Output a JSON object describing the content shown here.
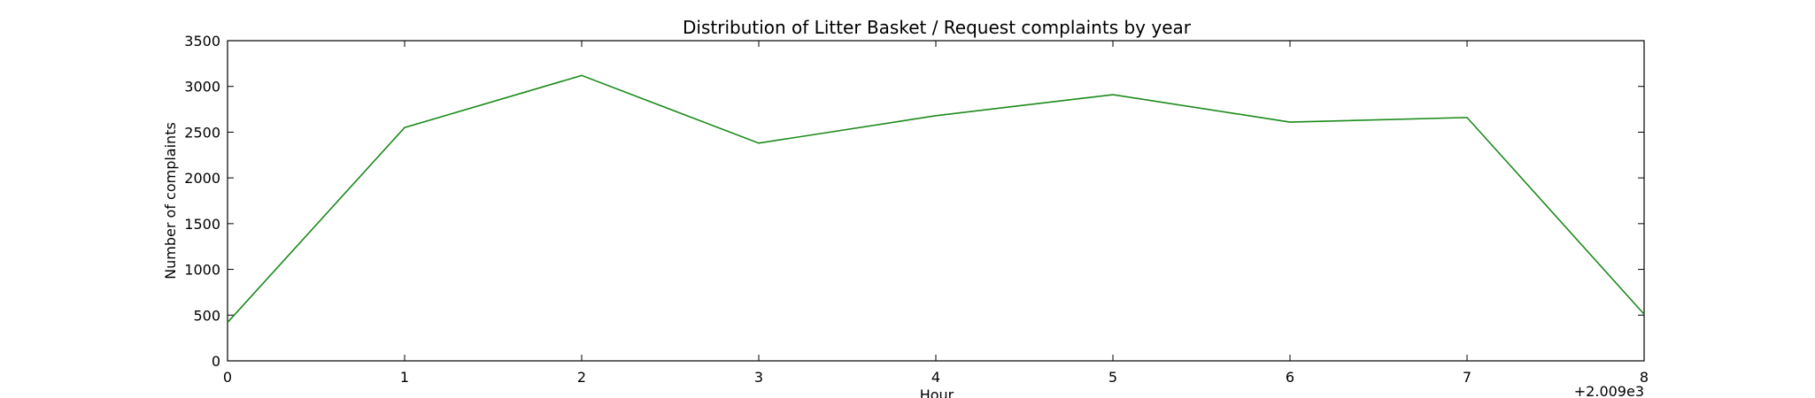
{
  "chart_data": {
    "type": "line",
    "title": "Distribution of  Litter Basket / Request complaints by year",
    "xlabel": "Hour",
    "ylabel": "Number of complaints",
    "x_offset_label": "+2.009e3",
    "x": [
      0,
      1,
      2,
      3,
      4,
      5,
      6,
      7,
      8
    ],
    "x_ticks": [
      "0",
      "1",
      "2",
      "3",
      "4",
      "5",
      "6",
      "7",
      "8"
    ],
    "y_ticks": [
      "0",
      "500",
      "1000",
      "1500",
      "2000",
      "2500",
      "3000",
      "3500"
    ],
    "xlim": [
      0,
      8
    ],
    "ylim": [
      0,
      3500
    ],
    "grid": false,
    "series": [
      {
        "color": "#1a8a1a",
        "values": [
          420,
          2550,
          3120,
          2380,
          2680,
          2910,
          2610,
          2660,
          510
        ]
      }
    ]
  }
}
